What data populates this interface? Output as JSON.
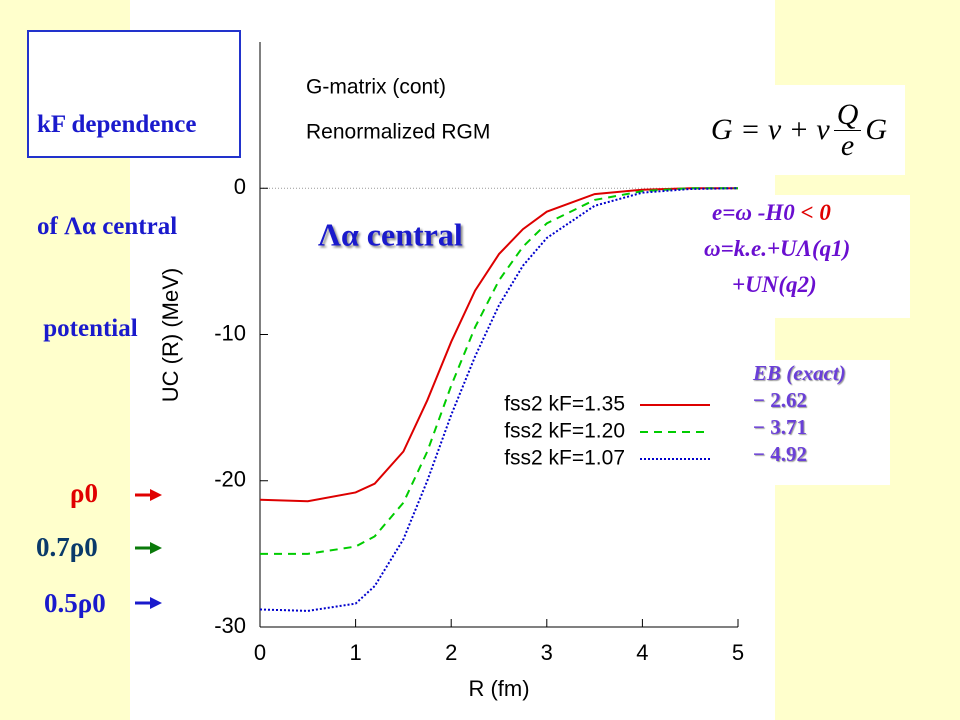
{
  "slide": {
    "title_lines": [
      "kF dependence",
      "of Λα central",
      " potential"
    ],
    "equation": {
      "lhs": "G = v + v",
      "num": "Q",
      "den": "e",
      "rhs": "G"
    },
    "energy_lines": {
      "e_def": "e=ω -H0",
      "e_sign": "< 0",
      "omega": "ω=k.e.+UΛ(q1)",
      "omega_cont": "+UN(q2)"
    },
    "binding": {
      "header": "EB (exact)",
      "rows": [
        "− 2.62",
        "− 3.71",
        "− 4.92"
      ]
    },
    "densities": [
      "ρ0",
      "0.7ρ0",
      "0.5ρ0"
    ]
  },
  "chart_data": {
    "type": "line",
    "annotations": [
      "G-matrix (cont)",
      "Renormalized RGM",
      "Λα central"
    ],
    "xlabel": "R (fm)",
    "ylabel": "UC (R) (MeV)",
    "x": [
      0,
      0.5,
      1.0,
      1.2,
      1.5,
      1.75,
      2.0,
      2.25,
      2.5,
      2.75,
      3.0,
      3.5,
      4.0,
      4.5,
      5.0
    ],
    "series": [
      {
        "name": "fss2 kF=1.35",
        "color": "#dd0000",
        "dash": "solid",
        "values": [
          -21.3,
          -21.4,
          -20.8,
          -20.2,
          -18.0,
          -14.5,
          -10.5,
          -7.0,
          -4.5,
          -2.8,
          -1.6,
          -0.4,
          -0.1,
          0,
          0
        ]
      },
      {
        "name": "fss2 kF=1.20",
        "color": "#00cc00",
        "dash": "dashed",
        "values": [
          -25.0,
          -25.0,
          -24.5,
          -23.8,
          -21.5,
          -18.0,
          -13.5,
          -9.5,
          -6.3,
          -4.0,
          -2.4,
          -0.8,
          -0.2,
          0,
          0
        ]
      },
      {
        "name": "fss2 kF=1.07",
        "color": "#0000cc",
        "dash": "dotted",
        "values": [
          -28.8,
          -28.9,
          -28.4,
          -27.2,
          -24.0,
          -20.0,
          -15.5,
          -11.5,
          -8.0,
          -5.3,
          -3.4,
          -1.2,
          -0.3,
          -0.05,
          0
        ]
      }
    ],
    "xlim": [
      0,
      5
    ],
    "xticks": [
      0,
      1,
      2,
      3,
      4,
      5
    ],
    "ylim": [
      -30,
      10
    ],
    "yticks": [
      0,
      -10,
      -20,
      -30
    ]
  }
}
